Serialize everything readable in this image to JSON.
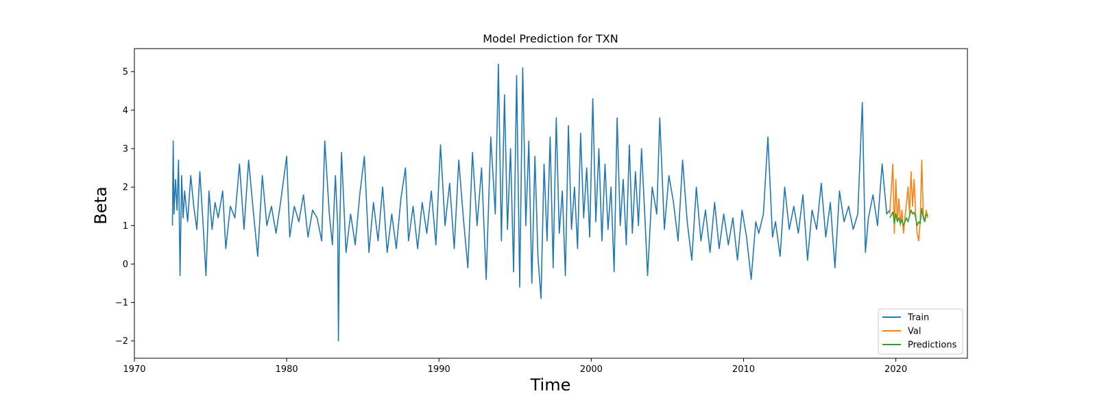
{
  "chart_data": {
    "type": "line",
    "title": "Model Prediction for TXN",
    "xlabel": "Time",
    "ylabel": "Beta",
    "xlim": [
      1970,
      2024.7
    ],
    "ylim": [
      -2.45,
      5.6
    ],
    "xticks": [
      1970,
      1980,
      1990,
      2000,
      2010,
      2020
    ],
    "yticks": [
      -2,
      -1,
      0,
      1,
      2,
      3,
      4,
      5
    ],
    "grid": false,
    "legend_position": "lower-right",
    "series": [
      {
        "name": "Train",
        "color": "#1f77b4",
        "x": [
          1972.5,
          1972.55,
          1972.6,
          1972.7,
          1972.8,
          1972.9,
          1973.0,
          1973.1,
          1973.2,
          1973.3,
          1973.5,
          1973.7,
          1973.9,
          1974.1,
          1974.3,
          1974.5,
          1974.7,
          1974.9,
          1975.1,
          1975.3,
          1975.5,
          1975.8,
          1976.0,
          1976.3,
          1976.6,
          1976.9,
          1977.2,
          1977.5,
          1977.8,
          1978.1,
          1978.4,
          1978.7,
          1979.0,
          1979.3,
          1979.6,
          1980.0,
          1980.2,
          1980.5,
          1980.8,
          1981.1,
          1981.4,
          1981.7,
          1982.0,
          1982.3,
          1982.5,
          1982.8,
          1983.0,
          1983.2,
          1983.35,
          1983.4,
          1983.45,
          1983.6,
          1983.9,
          1984.2,
          1984.5,
          1984.8,
          1985.1,
          1985.4,
          1985.7,
          1986.0,
          1986.3,
          1986.6,
          1986.9,
          1987.2,
          1987.5,
          1987.8,
          1988.0,
          1988.3,
          1988.6,
          1988.9,
          1989.2,
          1989.5,
          1989.8,
          1990.1,
          1990.4,
          1990.7,
          1991.0,
          1991.3,
          1991.6,
          1991.9,
          1992.2,
          1992.5,
          1992.8,
          1993.1,
          1993.4,
          1993.7,
          1993.9,
          1994.1,
          1994.3,
          1994.5,
          1994.7,
          1994.9,
          1995.1,
          1995.3,
          1995.5,
          1995.7,
          1995.9,
          1996.1,
          1996.3,
          1996.5,
          1996.7,
          1996.9,
          1997.1,
          1997.3,
          1997.5,
          1997.7,
          1997.9,
          1998.1,
          1998.3,
          1998.5,
          1998.7,
          1998.9,
          1999.1,
          1999.3,
          1999.5,
          1999.7,
          1999.9,
          2000.1,
          2000.3,
          2000.5,
          2000.7,
          2000.9,
          2001.1,
          2001.3,
          2001.5,
          2001.7,
          2001.9,
          2002.1,
          2002.3,
          2002.5,
          2002.7,
          2002.9,
          2003.1,
          2003.3,
          2003.5,
          2003.7,
          2004.0,
          2004.3,
          2004.5,
          2004.8,
          2005.1,
          2005.4,
          2005.7,
          2006.0,
          2006.3,
          2006.6,
          2006.9,
          2007.2,
          2007.5,
          2007.8,
          2008.1,
          2008.4,
          2008.7,
          2009.0,
          2009.3,
          2009.6,
          2009.9,
          2010.2,
          2010.5,
          2010.8,
          2011.0,
          2011.3,
          2011.6,
          2011.9,
          2012.1,
          2012.4,
          2012.7,
          2013.0,
          2013.3,
          2013.6,
          2013.9,
          2014.2,
          2014.5,
          2014.8,
          2015.1,
          2015.4,
          2015.7,
          2016.0,
          2016.3,
          2016.6,
          2016.9,
          2017.2,
          2017.5,
          2017.8,
          2018.0,
          2018.2,
          2018.5,
          2018.8,
          2019.1,
          2019.4,
          2019.6
        ],
        "y": [
          1.0,
          3.2,
          1.3,
          2.2,
          1.4,
          2.7,
          -0.3,
          2.3,
          1.2,
          1.9,
          1.1,
          2.3,
          1.5,
          0.9,
          2.4,
          1.1,
          -0.3,
          1.9,
          0.9,
          1.6,
          1.2,
          1.9,
          0.4,
          1.5,
          1.2,
          2.6,
          0.9,
          2.7,
          1.4,
          0.2,
          2.3,
          1.0,
          1.5,
          0.8,
          1.6,
          2.8,
          0.7,
          1.5,
          1.1,
          1.8,
          0.7,
          1.4,
          1.2,
          0.6,
          3.2,
          1.3,
          0.5,
          2.3,
          1.0,
          -2.0,
          0.4,
          2.9,
          0.3,
          1.3,
          0.5,
          1.8,
          2.8,
          0.3,
          1.6,
          0.6,
          2.0,
          0.3,
          1.3,
          0.4,
          1.7,
          2.5,
          0.6,
          1.5,
          0.4,
          1.6,
          0.8,
          1.9,
          0.5,
          3.1,
          1.0,
          2.1,
          0.4,
          2.7,
          1.2,
          -0.1,
          2.9,
          1.0,
          2.5,
          -0.4,
          3.3,
          1.3,
          5.2,
          0.6,
          4.4,
          0.9,
          3.0,
          -0.2,
          4.9,
          -0.6,
          5.1,
          1.0,
          3.2,
          -0.5,
          2.8,
          0.2,
          -0.9,
          2.6,
          0.6,
          3.3,
          -0.1,
          3.8,
          0.8,
          1.9,
          -0.3,
          3.6,
          0.9,
          2.0,
          0.4,
          3.4,
          1.2,
          2.5,
          0.7,
          4.3,
          1.1,
          3.0,
          0.6,
          2.6,
          0.9,
          2.0,
          -0.2,
          3.8,
          1.0,
          2.2,
          0.5,
          3.1,
          0.8,
          2.4,
          1.0,
          3.0,
          1.4,
          -0.3,
          2.0,
          1.3,
          3.8,
          0.9,
          2.3,
          1.6,
          0.6,
          2.7,
          1.1,
          0.1,
          2.0,
          0.6,
          1.4,
          0.3,
          1.6,
          0.4,
          1.3,
          0.5,
          1.2,
          0.1,
          1.4,
          0.7,
          -0.4,
          1.1,
          0.8,
          1.3,
          3.3,
          0.7,
          1.1,
          0.2,
          2.0,
          0.9,
          1.5,
          0.8,
          1.8,
          0.1,
          1.4,
          0.9,
          2.1,
          0.7,
          1.6,
          -0.1,
          1.9,
          1.1,
          1.5,
          0.9,
          1.3,
          4.2,
          0.3,
          1.2,
          1.8,
          1.0,
          2.6,
          1.3,
          1.4
        ]
      },
      {
        "name": "Val",
        "color": "#ff7f0e",
        "x": [
          2019.6,
          2019.8,
          2019.9,
          2020.0,
          2020.1,
          2020.2,
          2020.3,
          2020.4,
          2020.5,
          2020.6,
          2020.7,
          2020.8,
          2020.9,
          2021.0,
          2021.1,
          2021.2,
          2021.3,
          2021.4,
          2021.5,
          2021.6,
          2021.7,
          2021.8,
          2021.9,
          2022.0,
          2022.1
        ],
        "y": [
          1.3,
          2.6,
          0.8,
          2.2,
          1.1,
          1.7,
          1.0,
          1.4,
          0.8,
          1.2,
          1.6,
          2.0,
          1.3,
          2.4,
          1.5,
          2.2,
          1.3,
          0.8,
          0.6,
          1.1,
          2.7,
          1.3,
          1.1,
          1.4,
          1.2
        ]
      },
      {
        "name": "Predictions",
        "color": "#2ca02c",
        "x": [
          2019.6,
          2019.8,
          2019.9,
          2020.0,
          2020.1,
          2020.2,
          2020.3,
          2020.4,
          2020.5,
          2020.6,
          2020.7,
          2020.8,
          2020.9,
          2021.0,
          2021.1,
          2021.2,
          2021.3,
          2021.4,
          2021.5,
          2021.6,
          2021.7,
          2021.8,
          2021.9,
          2022.0,
          2022.1
        ],
        "y": [
          1.2,
          1.35,
          1.05,
          1.3,
          1.1,
          1.2,
          1.05,
          1.15,
          1.0,
          1.1,
          1.2,
          1.1,
          1.25,
          1.4,
          1.3,
          1.35,
          1.2,
          1.0,
          1.1,
          1.05,
          1.45,
          1.2,
          1.1,
          1.3,
          1.25
        ]
      }
    ]
  }
}
